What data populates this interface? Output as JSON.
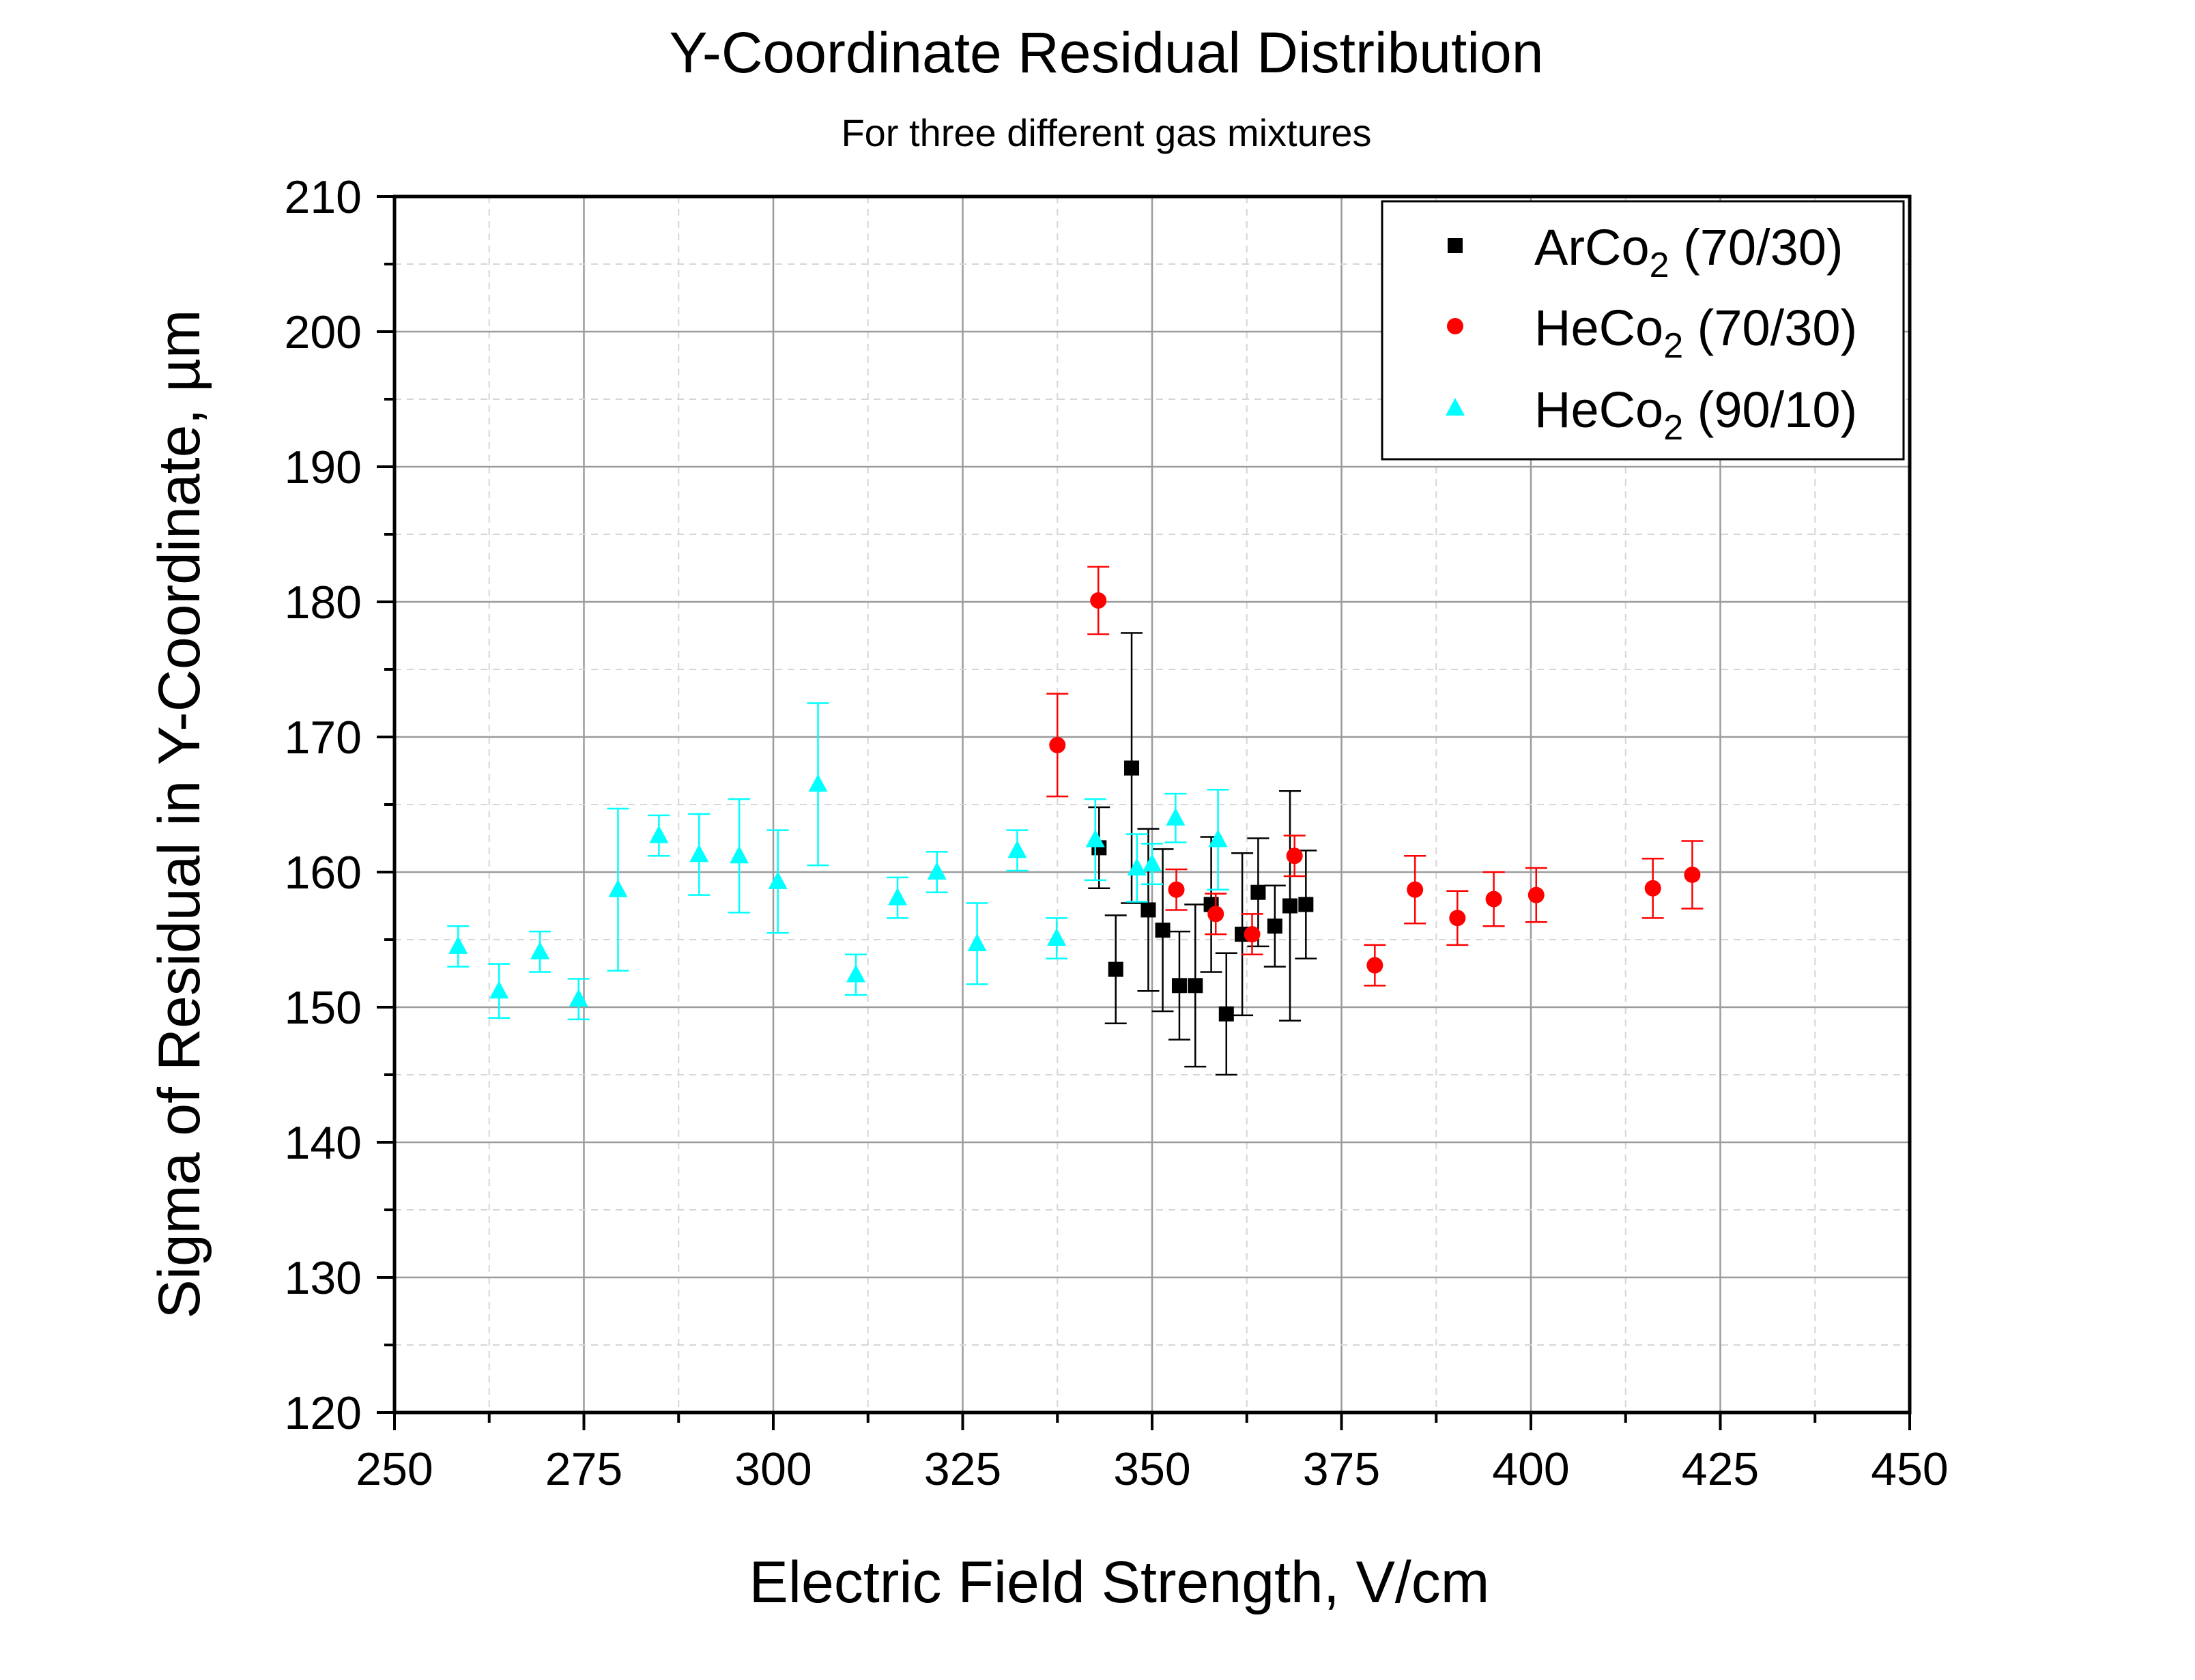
{
  "chart_data": {
    "type": "scatter",
    "title": "Y-Coordinate Residual Distribution",
    "subtitle": "For three different gas mixtures",
    "xlabel": "Electric Field Strength, V/cm",
    "ylabel": "Sigma of Residual in Y-Coordinate, µm",
    "xlim": [
      250,
      450
    ],
    "ylim": [
      120,
      210
    ],
    "x_ticks": [
      "250",
      "275",
      "300",
      "325",
      "350",
      "375",
      "400",
      "425",
      "450"
    ],
    "y_ticks": [
      "120",
      "130",
      "140",
      "150",
      "160",
      "170",
      "180",
      "190",
      "200",
      "210"
    ],
    "grid": true,
    "legend_position": "top-right",
    "series": [
      {
        "name": "ArCo2 (70/30)",
        "legend_main": "ArCo",
        "legend_sub": "2",
        "legend_tail": " (70/30)",
        "color": "#000000",
        "marker": "square",
        "points": [
          {
            "x": 343.0,
            "y": 161.8,
            "err": 3.0
          },
          {
            "x": 345.2,
            "y": 152.8,
            "err": 4.0
          },
          {
            "x": 347.3,
            "y": 167.7,
            "err": 10.0
          },
          {
            "x": 349.5,
            "y": 157.2,
            "err": 6.0
          },
          {
            "x": 351.4,
            "y": 155.7,
            "err": 6.0
          },
          {
            "x": 353.6,
            "y": 151.6,
            "err": 4.0
          },
          {
            "x": 355.7,
            "y": 151.6,
            "err": 6.0
          },
          {
            "x": 357.8,
            "y": 157.6,
            "err": 5.0
          },
          {
            "x": 359.8,
            "y": 149.5,
            "err": 4.5
          },
          {
            "x": 361.9,
            "y": 155.4,
            "err": 6.0
          },
          {
            "x": 364.0,
            "y": 158.5,
            "err": 4.0
          },
          {
            "x": 366.2,
            "y": 156.0,
            "err": 3.0
          },
          {
            "x": 368.2,
            "y": 157.5,
            "err": 8.5
          },
          {
            "x": 370.3,
            "y": 157.6,
            "err": 4.0
          }
        ]
      },
      {
        "name": "HeCo2 (70/30)",
        "legend_main": "HeCo",
        "legend_sub": "2",
        "legend_tail": " (70/30)",
        "color": "#ff0000",
        "marker": "circle",
        "points": [
          {
            "x": 337.5,
            "y": 169.4,
            "err": 3.8
          },
          {
            "x": 342.9,
            "y": 180.1,
            "err": 2.5
          },
          {
            "x": 353.2,
            "y": 158.7,
            "err": 1.5
          },
          {
            "x": 358.4,
            "y": 156.9,
            "err": 1.5
          },
          {
            "x": 363.2,
            "y": 155.4,
            "err": 1.5
          },
          {
            "x": 368.8,
            "y": 161.2,
            "err": 1.5
          },
          {
            "x": 379.4,
            "y": 153.1,
            "err": 1.5
          },
          {
            "x": 384.7,
            "y": 158.7,
            "err": 2.5
          },
          {
            "x": 390.3,
            "y": 156.6,
            "err": 2.0
          },
          {
            "x": 395.1,
            "y": 158.0,
            "err": 2.0
          },
          {
            "x": 400.7,
            "y": 158.3,
            "err": 2.0
          },
          {
            "x": 416.1,
            "y": 158.8,
            "err": 2.2
          },
          {
            "x": 421.3,
            "y": 159.8,
            "err": 2.5
          }
        ]
      },
      {
        "name": "HeCo2 (90/10)",
        "legend_main": "HeCo",
        "legend_sub": "2",
        "legend_tail": " (90/10)",
        "color": "#00ffff",
        "marker": "triangle",
        "points": [
          {
            "x": 258.4,
            "y": 154.5,
            "err": 1.5
          },
          {
            "x": 263.8,
            "y": 151.2,
            "err": 2.0
          },
          {
            "x": 269.2,
            "y": 154.1,
            "err": 1.5
          },
          {
            "x": 274.3,
            "y": 150.6,
            "err": 1.5
          },
          {
            "x": 279.5,
            "y": 158.7,
            "err": 6.0
          },
          {
            "x": 284.9,
            "y": 162.7,
            "err": 1.5
          },
          {
            "x": 290.2,
            "y": 161.3,
            "err": 3.0
          },
          {
            "x": 295.5,
            "y": 161.2,
            "err": 4.2
          },
          {
            "x": 300.6,
            "y": 159.3,
            "err": 3.8
          },
          {
            "x": 305.9,
            "y": 166.5,
            "err": 6.0
          },
          {
            "x": 310.9,
            "y": 152.4,
            "err": 1.5
          },
          {
            "x": 316.4,
            "y": 158.1,
            "err": 1.5
          },
          {
            "x": 321.6,
            "y": 160.0,
            "err": 1.5
          },
          {
            "x": 326.9,
            "y": 154.7,
            "err": 3.0
          },
          {
            "x": 332.2,
            "y": 161.6,
            "err": 1.5
          },
          {
            "x": 337.4,
            "y": 155.1,
            "err": 1.5
          },
          {
            "x": 342.5,
            "y": 162.4,
            "err": 3.0
          },
          {
            "x": 348.0,
            "y": 160.3,
            "err": 2.5
          },
          {
            "x": 350.0,
            "y": 160.6,
            "err": 1.5
          },
          {
            "x": 353.1,
            "y": 164.0,
            "err": 1.8
          },
          {
            "x": 358.7,
            "y": 162.4,
            "err": 3.7
          }
        ]
      }
    ]
  }
}
